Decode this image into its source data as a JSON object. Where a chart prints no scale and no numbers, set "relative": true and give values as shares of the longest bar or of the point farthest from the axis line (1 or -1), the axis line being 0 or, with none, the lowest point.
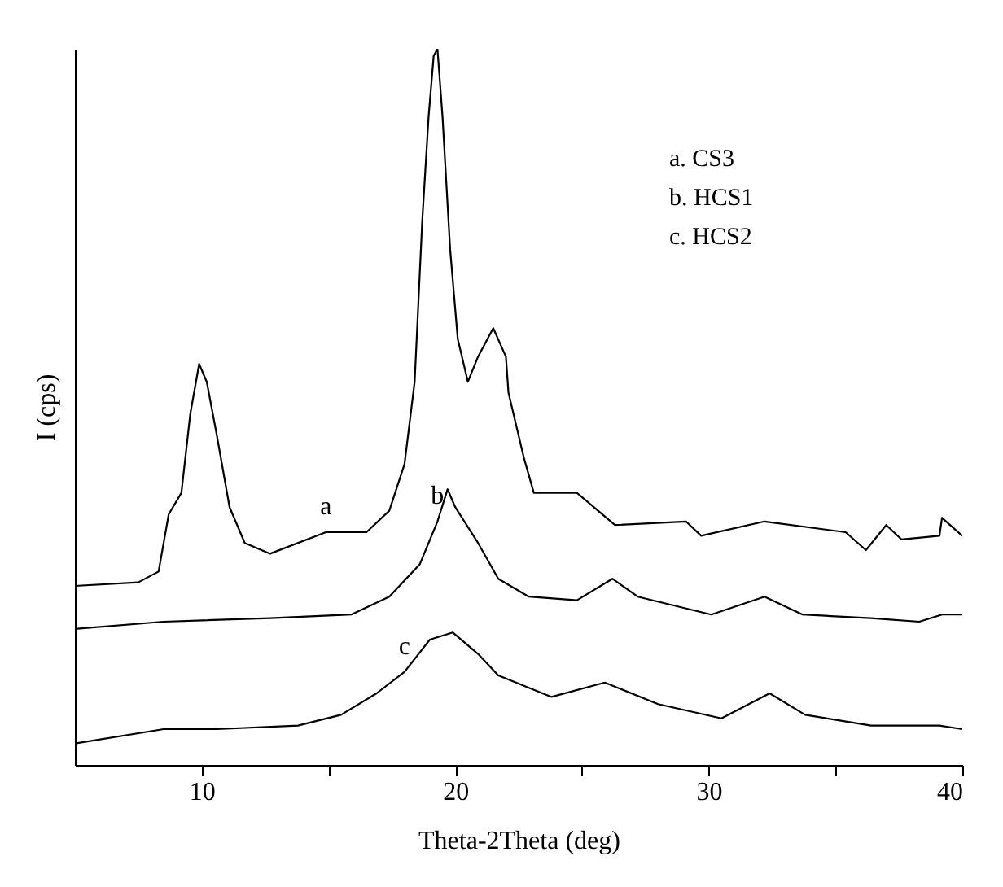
{
  "chart_data": {
    "type": "line",
    "relative": true,
    "xlabel": "Theta-2Theta (deg)",
    "ylabel": "I (cps)",
    "xlim": [
      5,
      40
    ],
    "xticks": [
      10,
      {
        "value": 15,
        "label": null
      },
      20,
      {
        "value": 25,
        "label": null
      },
      30,
      {
        "value": 35,
        "label": null
      },
      40
    ],
    "grid": false,
    "legend": false,
    "tick_labels": "x",
    "marker": "none",
    "line_style": "solid",
    "annotations": [
      "a. CS3",
      "b. HCS1",
      "c. HCS2"
    ],
    "series": [
      {
        "name": "a",
        "color": "#000000",
        "x": [
          5,
          7.5,
          8.3,
          8.7,
          9.2,
          9.55,
          9.9,
          10.2,
          10.6,
          11.1,
          11.7,
          12.7,
          14.9,
          16.5,
          17.4,
          18.0,
          18.4,
          18.7,
          18.95,
          19.15,
          19.3,
          19.5,
          19.8,
          20.1,
          20.5,
          20.9,
          21.5,
          22.0,
          22.1,
          22.7,
          23.1,
          24.8,
          26.3,
          29.1,
          29.7,
          32.2,
          35.4,
          36.2,
          37.0,
          37.6,
          39.1,
          39.2,
          40
        ],
        "values": [
          0.25,
          0.255,
          0.27,
          0.35,
          0.38,
          0.49,
          0.56,
          0.535,
          0.46,
          0.36,
          0.31,
          0.295,
          0.325,
          0.325,
          0.355,
          0.42,
          0.535,
          0.76,
          0.905,
          0.99,
          1,
          0.905,
          0.72,
          0.595,
          0.535,
          0.57,
          0.61,
          0.57,
          0.52,
          0.43,
          0.38,
          0.38,
          0.335,
          0.34,
          0.32,
          0.34,
          0.325,
          0.3,
          0.335,
          0.315,
          0.32,
          0.345,
          0.32
        ]
      },
      {
        "name": "b",
        "color": "#000000",
        "x": [
          5,
          8.5,
          12.7,
          15.9,
          17.4,
          18.6,
          19.3,
          19.7,
          20.0,
          20.9,
          21.7,
          22.9,
          24.8,
          26.2,
          27.2,
          30.1,
          32.2,
          33.7,
          36.4,
          38.3,
          39.2,
          40
        ],
        "values": [
          0.19,
          0.2,
          0.205,
          0.21,
          0.235,
          0.28,
          0.34,
          0.385,
          0.36,
          0.31,
          0.26,
          0.235,
          0.23,
          0.26,
          0.235,
          0.21,
          0.235,
          0.21,
          0.205,
          0.2,
          0.21,
          0.21
        ]
      },
      {
        "name": "c",
        "color": "#000000",
        "x": [
          5,
          8.5,
          10.6,
          13.8,
          15.5,
          16.9,
          18.0,
          19.0,
          19.9,
          20.9,
          21.7,
          23.8,
          25.9,
          28.0,
          30.5,
          32.4,
          33.8,
          36.4,
          39.1,
          40
        ],
        "values": [
          0.03,
          0.05,
          0.05,
          0.055,
          0.07,
          0.1,
          0.13,
          0.175,
          0.185,
          0.155,
          0.125,
          0.095,
          0.115,
          0.085,
          0.065,
          0.1,
          0.07,
          0.055,
          0.055,
          0.05
        ]
      }
    ]
  }
}
